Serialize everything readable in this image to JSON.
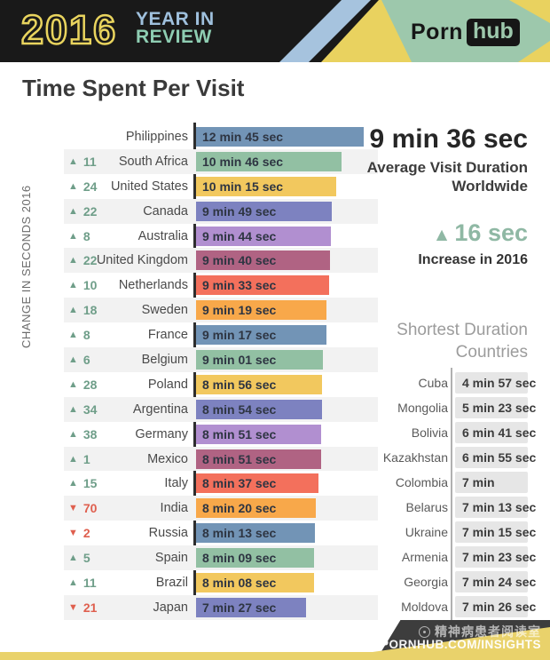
{
  "header": {
    "year": "2016",
    "tagline_line1": "YEAR IN",
    "tagline_line2": "REVIEW",
    "brand_porn": "Porn",
    "brand_hub": "hub"
  },
  "title": "Time Spent Per Visit",
  "axis_label": "CHANGE IN SECONDS 2016",
  "chart_data": {
    "type": "bar",
    "orientation": "horizontal",
    "title": "Time Spent Per Visit",
    "value_unit": "seconds",
    "bar_colors": [
      "#7294b6",
      "#92c0a3",
      "#f2c85e",
      "#7d82c0",
      "#b18fd0",
      "#b06383",
      "#f3705c",
      "#f8a84a"
    ],
    "rows": [
      {
        "country": "Philippines",
        "duration": "12 min 45 sec",
        "seconds": 765,
        "change": null
      },
      {
        "country": "South Africa",
        "duration": "10 min 46 sec",
        "seconds": 646,
        "change": 11
      },
      {
        "country": "United States",
        "duration": "10 min 15 sec",
        "seconds": 615,
        "change": 24
      },
      {
        "country": "Canada",
        "duration": "9 min 49 sec",
        "seconds": 589,
        "change": 22
      },
      {
        "country": "Australia",
        "duration": "9 min 44 sec",
        "seconds": 584,
        "change": 8
      },
      {
        "country": "United Kingdom",
        "duration": "9 min 40 sec",
        "seconds": 580,
        "change": 22
      },
      {
        "country": "Netherlands",
        "duration": "9 min 33 sec",
        "seconds": 573,
        "change": 10
      },
      {
        "country": "Sweden",
        "duration": "9 min 19 sec",
        "seconds": 559,
        "change": 18
      },
      {
        "country": "France",
        "duration": "9 min 17 sec",
        "seconds": 557,
        "change": 8
      },
      {
        "country": "Belgium",
        "duration": "9 min 01 sec",
        "seconds": 541,
        "change": 6
      },
      {
        "country": "Poland",
        "duration": "8 min 56 sec",
        "seconds": 536,
        "change": 28
      },
      {
        "country": "Argentina",
        "duration": "8 min 54 sec",
        "seconds": 534,
        "change": 34
      },
      {
        "country": "Germany",
        "duration": "8 min 51 sec",
        "seconds": 531,
        "change": 38
      },
      {
        "country": "Mexico",
        "duration": "8 min 51 sec",
        "seconds": 531,
        "change": 1
      },
      {
        "country": "Italy",
        "duration": "8 min 37 sec",
        "seconds": 517,
        "change": 15
      },
      {
        "country": "India",
        "duration": "8 min 20 sec",
        "seconds": 500,
        "change": -70
      },
      {
        "country": "Russia",
        "duration": "8 min 13 sec",
        "seconds": 493,
        "change": -2
      },
      {
        "country": "Spain",
        "duration": "8 min 09 sec",
        "seconds": 489,
        "change": 5
      },
      {
        "country": "Brazil",
        "duration": "8 min 08 sec",
        "seconds": 488,
        "change": 11
      },
      {
        "country": "Japan",
        "duration": "7 min 27 sec",
        "seconds": 447,
        "change": -21
      }
    ]
  },
  "summary": {
    "value": "9 min 36 sec",
    "caption_line1": "Average Visit Duration",
    "caption_line2": "Worldwide",
    "delta_symbol": "▲",
    "delta_value": "16 sec",
    "delta_caption": "Increase in 2016"
  },
  "shortest": {
    "heading_line1": "Shortest Duration",
    "heading_line2": "Countries",
    "rows": [
      {
        "country": "Cuba",
        "duration": "4 min 57 sec"
      },
      {
        "country": "Mongolia",
        "duration": "5 min 23 sec"
      },
      {
        "country": "Bolivia",
        "duration": "6 min 41 sec"
      },
      {
        "country": "Kazakhstan",
        "duration": "6 min 55 sec"
      },
      {
        "country": "Colombia",
        "duration": "7 min"
      },
      {
        "country": "Belarus",
        "duration": "7 min 13 sec"
      },
      {
        "country": "Ukraine",
        "duration": "7 min 15 sec"
      },
      {
        "country": "Armenia",
        "duration": "7 min 23 sec"
      },
      {
        "country": "Georgia",
        "duration": "7 min 24 sec"
      },
      {
        "country": "Moldova",
        "duration": "7 min 26 sec"
      }
    ]
  },
  "footer": {
    "watermark": "精神病患者阅读室",
    "site": "PORNHUB.COM/INSIGHTS"
  },
  "colors": {
    "header_bg": "#191919",
    "accent_yellow": "#e9d25f",
    "accent_blue": "#a6c3de",
    "accent_green": "#9dc8ac",
    "up": "#6f9e89",
    "down": "#df5f4e",
    "stripe": "#f2f2f2",
    "bar_text": "#2e3542",
    "value_box_bg": "#e6e6e6"
  }
}
